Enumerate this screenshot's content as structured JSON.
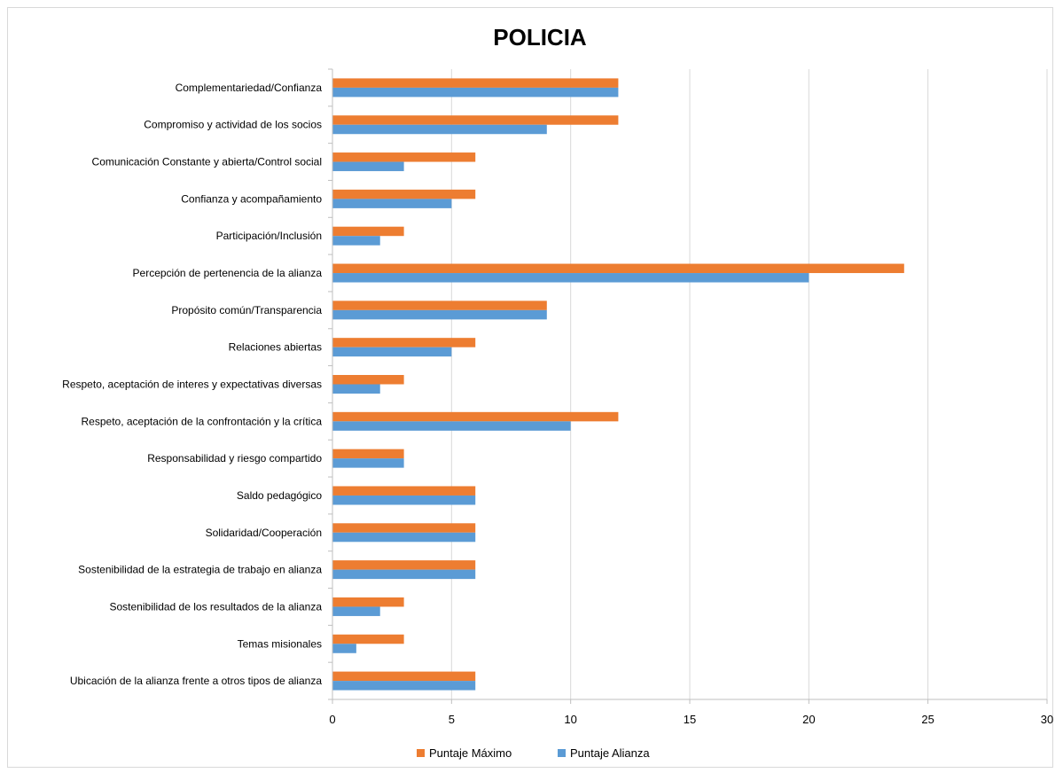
{
  "chart_data": {
    "type": "bar",
    "orientation": "horizontal",
    "title": "POLICIA",
    "xlabel": "",
    "ylabel": "",
    "xlim": [
      0,
      30
    ],
    "xticks": [
      0,
      5,
      10,
      15,
      20,
      25,
      30
    ],
    "grid": "vertical",
    "legend_position": "bottom",
    "categories": [
      "Complementariedad/Confianza",
      "Compromiso y actividad de los socios",
      "Comunicación Constante y abierta/Control social",
      "Confianza y acompañamiento",
      "Participación/Inclusión",
      "Percepción de pertenencia de la alianza",
      "Propósito común/Transparencia",
      "Relaciones abiertas",
      "Respeto, aceptación de interes y expectativas diversas",
      "Respeto, aceptación de la confrontación y la crítica",
      "Responsabilidad y riesgo compartido",
      "Saldo pedagógico",
      "Solidaridad/Cooperación",
      "Sostenibilidad de la estrategia de trabajo en alianza",
      "Sostenibilidad de los resultados de la alianza",
      "Temas misionales",
      "Ubicación de la alianza frente a otros tipos de alianza"
    ],
    "series": [
      {
        "name": "Puntaje Máximo",
        "color": "#ed7d31",
        "values": [
          12,
          12,
          6,
          6,
          3,
          24,
          9,
          6,
          3,
          12,
          3,
          6,
          6,
          6,
          3,
          3,
          6
        ]
      },
      {
        "name": "Puntaje Alianza",
        "color": "#5b9bd5",
        "values": [
          12,
          9,
          3,
          5,
          2,
          20,
          9,
          5,
          2,
          10,
          3,
          6,
          6,
          6,
          2,
          1,
          6
        ]
      }
    ],
    "gridline_color": "#d9d9d9",
    "axis_color": "#bfbfbf"
  }
}
